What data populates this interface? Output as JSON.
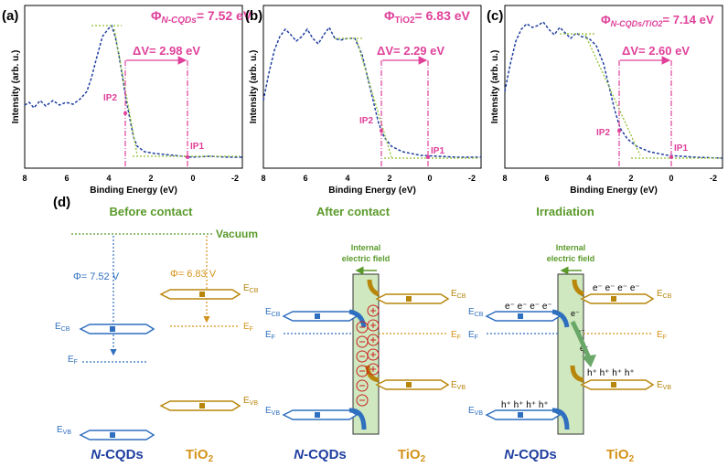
{
  "colors": {
    "blue": "#2f6fbf",
    "dark_blue": "#1f3fa0",
    "green": "#5a9a2a",
    "olive": "#8fbf2f",
    "orange": "#d4931a",
    "pink": "#e0409a",
    "red": "#cc2222",
    "gold": "#b8860b",
    "field": "#cfe8bf"
  },
  "panels": [
    {
      "label": "(a)",
      "phi_symbol": "Φ",
      "phi_sub": "N-CQDs",
      "phi_value": "= 7.52 eV",
      "dv": "ΔV= 2.98 eV",
      "ip1": "IP1",
      "ip2": "IP2"
    },
    {
      "label": "(b)",
      "phi_symbol": "Φ",
      "phi_sub": "TiO2",
      "phi_value": "= 6.83 eV",
      "dv": "ΔV= 2.29 eV",
      "ip1": "IP1",
      "ip2": "IP2"
    },
    {
      "label": "(c)",
      "phi_symbol": "Φ",
      "phi_sub": "N-CQDs/TiO2",
      "phi_value": "= 7.14 eV",
      "dv": "ΔV= 2.60 eV",
      "ip1": "IP1",
      "ip2": "IP2"
    }
  ],
  "axes": {
    "xlabel": "Binding Energy (eV)",
    "ylabel": "Intensity (arb. u.)",
    "xticks": [
      "8",
      "6",
      "4",
      "2",
      "0",
      "-2"
    ]
  },
  "diagram": {
    "label": "(d)",
    "sections": [
      "Before contact",
      "After contact",
      "Irradiation"
    ],
    "vacuum": "Vacuum",
    "phi_ncqd": "Φ= 7.52 V",
    "phi_tio2": "Φ= 6.83 V",
    "field_line1": "Internal",
    "field_line2": "electric field",
    "ecb": "E",
    "ecb_sub": "CB",
    "evb": "E",
    "evb_sub": "VB",
    "ef": "E",
    "ef_sub": "F",
    "ncqds_italic": "N",
    "ncqds_rest": "-CQDs",
    "tio2": "TiO",
    "tio2_sub": "2",
    "electrons": "e⁻ e⁻ e⁻ e⁻",
    "holes": "h⁺ h⁺ h⁺ h⁺",
    "single_electron": "e⁻"
  }
}
